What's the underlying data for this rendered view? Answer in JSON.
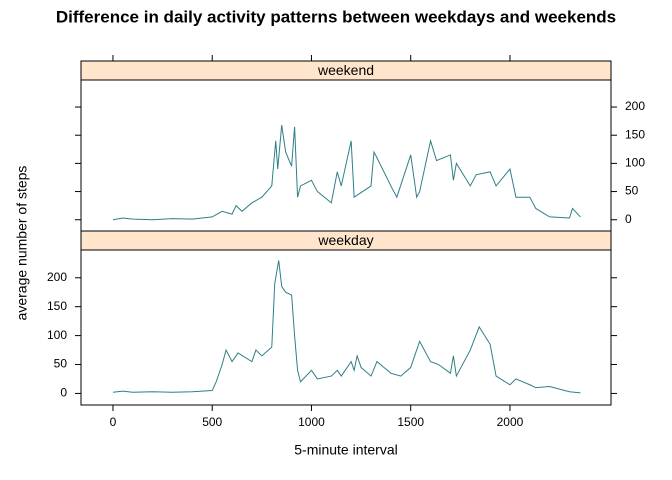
{
  "chart_data": {
    "type": "line",
    "title": "Difference in daily activity patterns between weekdays and weekends",
    "xlabel": "5-minute interval",
    "ylabel": "average number of steps",
    "xlim": [
      -161,
      2509
    ],
    "xticks": [
      0,
      500,
      1000,
      1500,
      2000
    ],
    "ylim": [
      -20,
      248
    ],
    "yticks": [
      0,
      50,
      100,
      150,
      200
    ],
    "color": "#2f7f86",
    "strip_color": "#ffe5cc",
    "series": [
      {
        "name": "weekend",
        "x": [
          0,
          50,
          100,
          200,
          300,
          400,
          500,
          550,
          600,
          620,
          650,
          700,
          750,
          800,
          820,
          830,
          850,
          870,
          900,
          915,
          930,
          945,
          1000,
          1030,
          1100,
          1130,
          1150,
          1200,
          1215,
          1300,
          1315,
          1330,
          1400,
          1430,
          1500,
          1530,
          1545,
          1600,
          1630,
          1700,
          1715,
          1730,
          1800,
          1830,
          1900,
          1930,
          2000,
          2030,
          2100,
          2130,
          2200,
          2300,
          2315,
          2355
        ],
        "values": [
          0,
          3,
          1,
          0,
          2,
          1,
          5,
          15,
          10,
          25,
          15,
          30,
          40,
          60,
          140,
          90,
          168,
          120,
          95,
          165,
          40,
          60,
          70,
          50,
          30,
          85,
          60,
          140,
          40,
          60,
          120,
          110,
          60,
          40,
          115,
          40,
          50,
          140,
          105,
          115,
          70,
          100,
          60,
          80,
          85,
          60,
          90,
          40,
          40,
          20,
          5,
          3,
          20,
          5
        ]
      },
      {
        "name": "weekday",
        "x": [
          0,
          50,
          100,
          200,
          300,
          400,
          500,
          520,
          550,
          570,
          600,
          630,
          700,
          720,
          750,
          800,
          815,
          835,
          850,
          870,
          900,
          915,
          930,
          945,
          1000,
          1030,
          1100,
          1130,
          1150,
          1200,
          1215,
          1230,
          1250,
          1300,
          1330,
          1400,
          1450,
          1500,
          1545,
          1600,
          1640,
          1700,
          1715,
          1730,
          1800,
          1845,
          1900,
          1930,
          2000,
          2030,
          2100,
          2130,
          2200,
          2300,
          2355
        ],
        "values": [
          2,
          4,
          2,
          3,
          2,
          3,
          5,
          20,
          50,
          75,
          55,
          70,
          55,
          75,
          65,
          80,
          190,
          230,
          185,
          175,
          170,
          100,
          40,
          20,
          40,
          25,
          30,
          40,
          30,
          55,
          40,
          65,
          45,
          30,
          55,
          35,
          30,
          45,
          90,
          55,
          50,
          35,
          65,
          30,
          75,
          115,
          85,
          30,
          15,
          25,
          15,
          10,
          12,
          3,
          1
        ]
      }
    ]
  }
}
